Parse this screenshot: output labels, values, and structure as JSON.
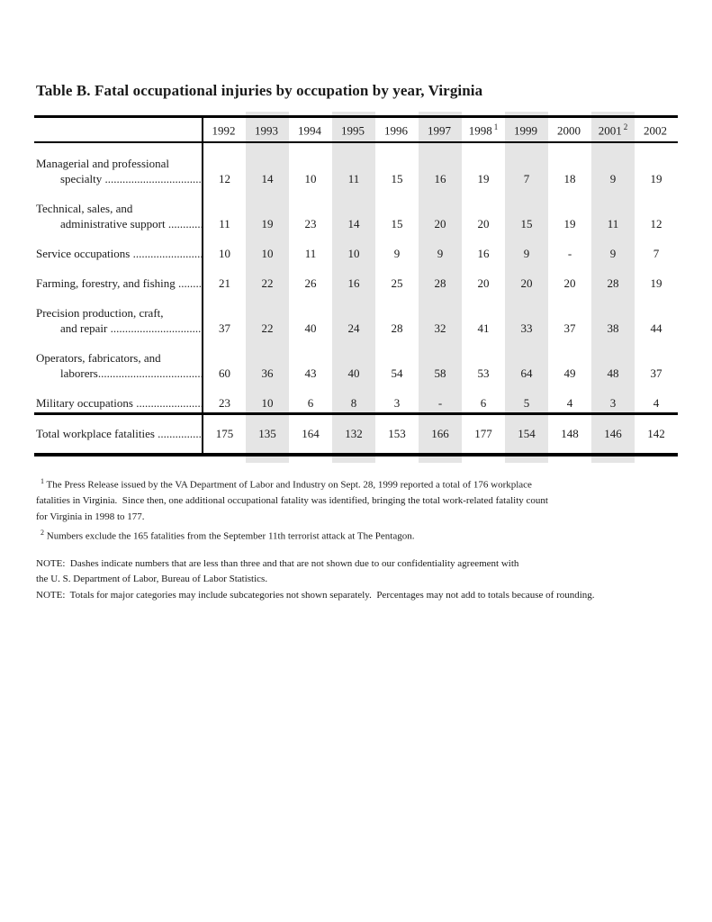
{
  "title": "Table B. Fatal occupational injuries by occupation by year, Virginia",
  "colors": {
    "stripe": "#e5e5e5",
    "text": "#1a1a1a",
    "rule": "#000000"
  },
  "table": {
    "columns": [
      {
        "year": "1992",
        "sup": ""
      },
      {
        "year": "1993",
        "sup": ""
      },
      {
        "year": "1994",
        "sup": ""
      },
      {
        "year": "1995",
        "sup": ""
      },
      {
        "year": "1996",
        "sup": ""
      },
      {
        "year": "1997",
        "sup": ""
      },
      {
        "year": "1998",
        "sup": "1"
      },
      {
        "year": "1999",
        "sup": ""
      },
      {
        "year": "2000",
        "sup": ""
      },
      {
        "year": "2001",
        "sup": "2"
      },
      {
        "year": "2002",
        "sup": ""
      }
    ],
    "rows": [
      {
        "line1": "Managerial and professional",
        "line2": "specialty ............................................",
        "values": [
          "12",
          "14",
          "10",
          "11",
          "15",
          "16",
          "19",
          "7",
          "18",
          "9",
          "19"
        ]
      },
      {
        "line1": "Technical, sales, and",
        "line2": "administrative support ......................",
        "values": [
          "11",
          "19",
          "23",
          "14",
          "15",
          "20",
          "20",
          "15",
          "19",
          "11",
          "12"
        ]
      },
      {
        "line1": "Service occupations ..................................",
        "line2": "",
        "values": [
          "10",
          "10",
          "11",
          "10",
          "9",
          "9",
          "16",
          "9",
          "-",
          "9",
          "7"
        ]
      },
      {
        "line1": "Farming, forestry, and fishing ................",
        "line2": "",
        "values": [
          "21",
          "22",
          "26",
          "16",
          "25",
          "28",
          "20",
          "20",
          "20",
          "28",
          "19"
        ]
      },
      {
        "line1": "Precision production, craft,",
        "line2": "and repair ..........................................",
        "values": [
          "37",
          "22",
          "40",
          "24",
          "28",
          "32",
          "41",
          "33",
          "37",
          "38",
          "44"
        ]
      },
      {
        "line1": "Operators, fabricators, and",
        "line2": "laborers..............................................",
        "values": [
          "60",
          "36",
          "43",
          "40",
          "54",
          "58",
          "53",
          "64",
          "49",
          "48",
          "37"
        ]
      },
      {
        "line1": "Military occupations ................................",
        "line2": "",
        "values": [
          "23",
          "10",
          "6",
          "8",
          "3",
          "-",
          "6",
          "5",
          "4",
          "3",
          "4"
        ]
      }
    ],
    "total_row": {
      "label": "Total workplace fatalities ........................",
      "values": [
        "175",
        "135",
        "164",
        "132",
        "153",
        "166",
        "177",
        "154",
        "148",
        "146",
        "142"
      ]
    }
  },
  "footnotes": [
    {
      "sup": "1",
      "text": " The Press Release issued by the VA Department of Labor and Industry on Sept. 28, 1999 reported a total of 176 workplace\nfatalities in Virginia.  Since then, one additional occupational fatality was identified, bringing the total work-related fatality count\nfor Virginia in 1998 to 177."
    },
    {
      "sup": "2",
      "text": " Numbers exclude the 165 fatalities from the September 11th terrorist attack at The Pentagon."
    }
  ],
  "notes": [
    "NOTE:  Dashes indicate numbers that are less than three and that are not shown due to our confidentiality agreement with\nthe U. S. Department of Labor, Bureau of Labor Statistics.",
    "NOTE:  Totals for major categories may include subcategories not shown separately.  Percentages may not add to totals because of rounding."
  ]
}
